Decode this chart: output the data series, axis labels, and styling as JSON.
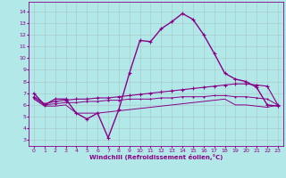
{
  "xlabel": "Windchill (Refroidissement éolien,°C)",
  "bg_color": "#b3e8e8",
  "grid_color": "#aacccc",
  "line_color": "#880088",
  "x_ticks": [
    0,
    1,
    2,
    3,
    4,
    5,
    6,
    7,
    8,
    9,
    10,
    11,
    12,
    13,
    14,
    15,
    16,
    17,
    18,
    19,
    20,
    21,
    22,
    23
  ],
  "y_ticks": [
    3,
    4,
    5,
    6,
    7,
    8,
    9,
    10,
    11,
    12,
    13,
    14
  ],
  "ylim": [
    2.5,
    14.8
  ],
  "xlim": [
    -0.5,
    23.5
  ],
  "series": [
    {
      "x": [
        0,
        1,
        2,
        3,
        4,
        5,
        6,
        7,
        8,
        9,
        10,
        11,
        12,
        13,
        14,
        15,
        16,
        17,
        18,
        19,
        20,
        21,
        22,
        23
      ],
      "y": [
        7.0,
        6.0,
        6.5,
        6.5,
        5.3,
        4.8,
        5.3,
        3.2,
        5.6,
        8.7,
        11.5,
        11.4,
        12.5,
        13.1,
        13.8,
        13.3,
        12.0,
        10.4,
        8.7,
        8.2,
        8.0,
        7.5,
        6.0,
        5.9
      ],
      "marker": "+",
      "markersize": 3.5,
      "linewidth": 1.0
    },
    {
      "x": [
        0,
        1,
        2,
        3,
        4,
        5,
        6,
        7,
        8,
        9,
        10,
        11,
        12,
        13,
        14,
        15,
        16,
        17,
        18,
        19,
        20,
        21,
        22,
        23
      ],
      "y": [
        6.7,
        6.1,
        6.3,
        6.4,
        6.5,
        6.5,
        6.6,
        6.6,
        6.7,
        6.8,
        6.9,
        7.0,
        7.1,
        7.2,
        7.3,
        7.4,
        7.5,
        7.6,
        7.7,
        7.8,
        7.8,
        7.7,
        7.6,
        6.0
      ],
      "marker": "+",
      "markersize": 2.5,
      "linewidth": 0.8
    },
    {
      "x": [
        0,
        1,
        2,
        3,
        4,
        5,
        6,
        7,
        8,
        9,
        10,
        11,
        12,
        13,
        14,
        15,
        16,
        17,
        18,
        19,
        20,
        21,
        22,
        23
      ],
      "y": [
        6.6,
        6.0,
        6.1,
        6.2,
        6.2,
        6.3,
        6.3,
        6.4,
        6.4,
        6.5,
        6.5,
        6.5,
        6.6,
        6.6,
        6.7,
        6.7,
        6.7,
        6.8,
        6.8,
        6.7,
        6.7,
        6.6,
        6.5,
        6.0
      ],
      "marker": "+",
      "markersize": 2.0,
      "linewidth": 0.7
    },
    {
      "x": [
        0,
        1,
        2,
        3,
        4,
        5,
        6,
        7,
        8,
        9,
        10,
        11,
        12,
        13,
        14,
        15,
        16,
        17,
        18,
        19,
        20,
        21,
        22,
        23
      ],
      "y": [
        6.5,
        5.9,
        5.9,
        6.0,
        5.3,
        5.3,
        5.3,
        5.4,
        5.5,
        5.6,
        5.7,
        5.8,
        5.9,
        6.0,
        6.1,
        6.2,
        6.3,
        6.4,
        6.5,
        6.0,
        6.0,
        5.9,
        5.8,
        6.0
      ],
      "marker": null,
      "markersize": 0,
      "linewidth": 0.7
    }
  ]
}
